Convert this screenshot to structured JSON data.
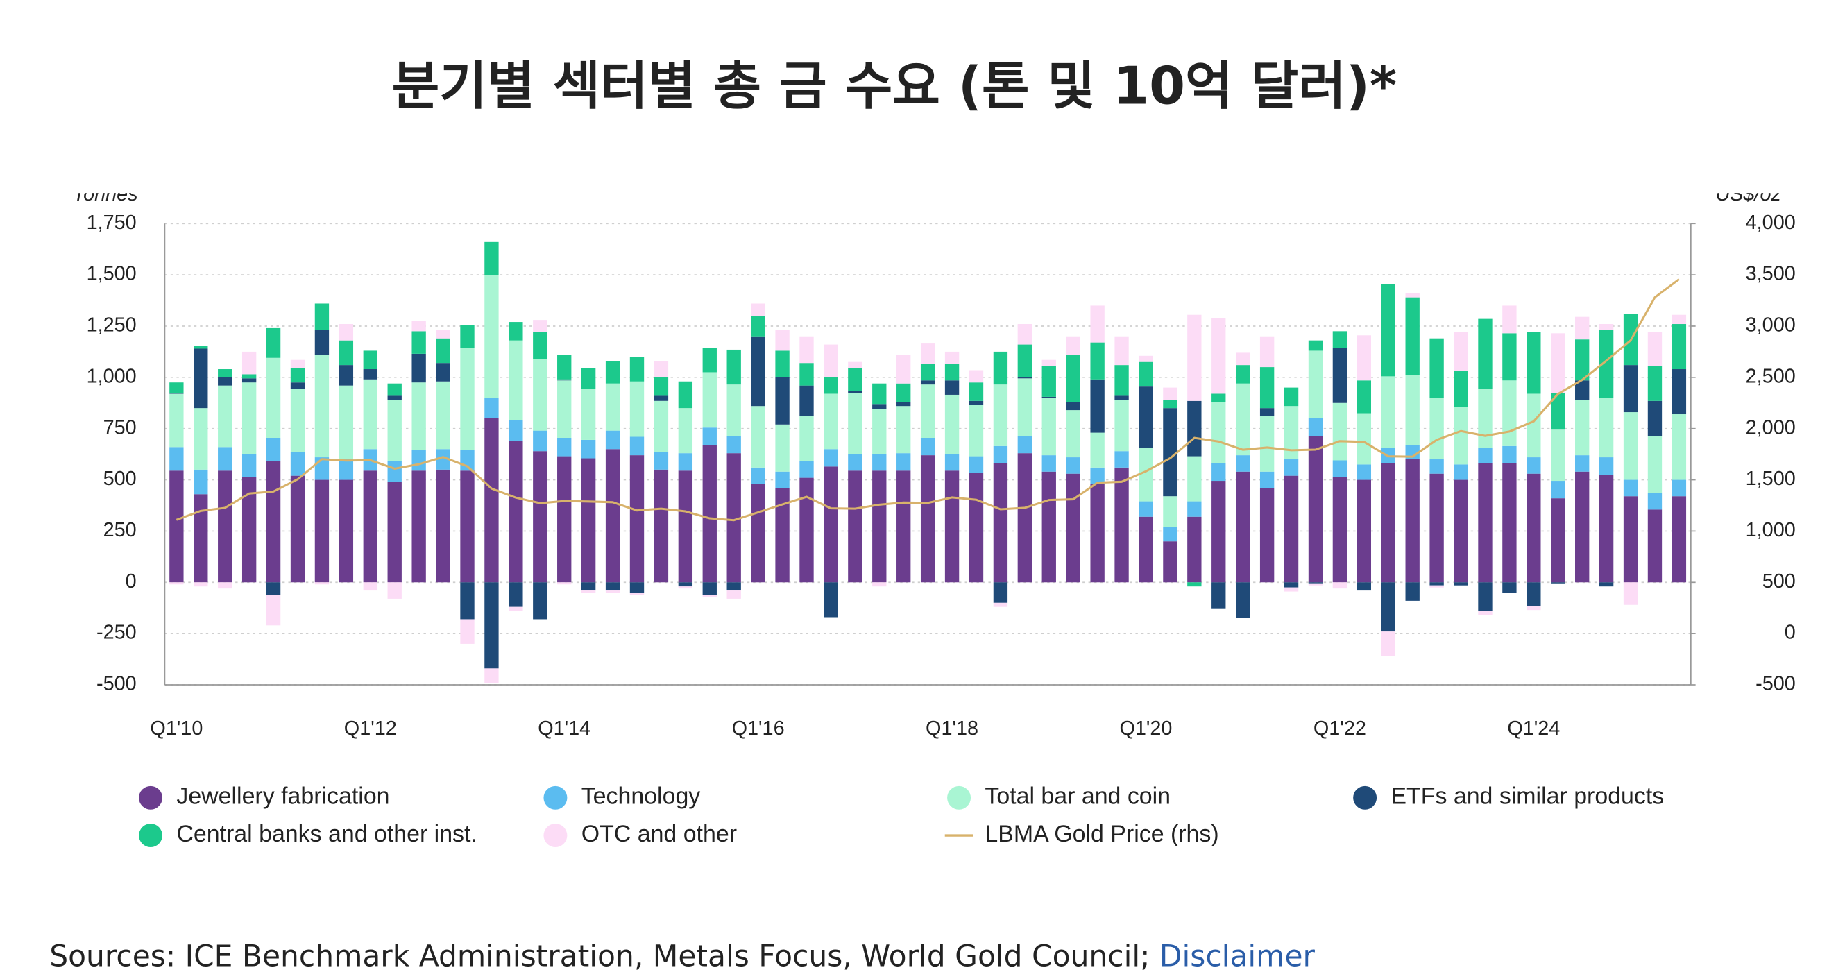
{
  "chart_data": {
    "type": "bar",
    "title": "분기별 섹터별 총 금 수요 (톤 및 10억 달러)*",
    "ylabel": "Tonnes",
    "y2label": "US$/oz",
    "stacked": true,
    "grid": true,
    "legend": "bottom",
    "categories": [
      "Q1'10",
      null,
      null,
      null,
      null,
      null,
      null,
      null,
      "Q1'12",
      null,
      null,
      null,
      null,
      null,
      null,
      null,
      "Q1'14",
      null,
      null,
      null,
      null,
      null,
      null,
      null,
      "Q1'16",
      null,
      null,
      null,
      null,
      null,
      null,
      null,
      "Q1'18",
      null,
      null,
      null,
      null,
      null,
      null,
      null,
      "Q1'20",
      null,
      null,
      null,
      null,
      null,
      null,
      null,
      "Q1'22",
      null,
      null,
      null,
      null,
      null,
      null,
      null,
      "Q1'24",
      null,
      null,
      null,
      null,
      null,
      null
    ],
    "ylim": [
      -500,
      1750
    ],
    "yticks": [
      -500,
      -250,
      0,
      250,
      500,
      750,
      {
        "value": 1000,
        "label": "1,000"
      },
      {
        "value": 1250,
        "label": "1,250"
      },
      {
        "value": 1500,
        "label": "1,500"
      },
      {
        "value": 1750,
        "label": "1,750"
      }
    ],
    "y2lim": [
      -500,
      4000
    ],
    "y2ticks": [
      -500,
      0,
      500,
      {
        "value": 1000,
        "label": "1,000"
      },
      {
        "value": 1500,
        "label": "1,500"
      },
      {
        "value": 2000,
        "label": "2,000"
      },
      {
        "value": 2500,
        "label": "2,500"
      },
      {
        "value": 3000,
        "label": "3,000"
      },
      {
        "value": 3500,
        "label": "3,500"
      },
      {
        "value": 4000,
        "label": "4,000"
      }
    ],
    "series": [
      {
        "name": "Jewellery fabrication",
        "color": "#6b3d8e",
        "values": [
          545,
          430,
          545,
          515,
          590,
          520,
          500,
          500,
          545,
          490,
          545,
          550,
          545,
          800,
          690,
          640,
          615,
          605,
          650,
          620,
          550,
          545,
          670,
          630,
          480,
          460,
          510,
          565,
          545,
          545,
          545,
          620,
          545,
          535,
          580,
          630,
          540,
          530,
          480,
          560,
          320,
          200,
          320,
          495,
          540,
          460,
          520,
          715,
          515,
          500,
          580,
          600,
          530,
          500,
          580,
          580,
          530,
          410,
          540,
          525,
          420,
          355,
          420
        ]
      },
      {
        "name": "Technology",
        "color": "#5bbcf0",
        "values": [
          115,
          120,
          115,
          110,
          115,
          115,
          110,
          100,
          105,
          100,
          100,
          100,
          100,
          100,
          100,
          100,
          90,
          90,
          90,
          90,
          85,
          85,
          85,
          85,
          80,
          80,
          80,
          85,
          80,
          80,
          85,
          85,
          80,
          80,
          85,
          85,
          80,
          80,
          80,
          80,
          75,
          70,
          75,
          85,
          80,
          80,
          80,
          85,
          80,
          75,
          75,
          70,
          70,
          75,
          75,
          85,
          80,
          85,
          80,
          85,
          80,
          80,
          80
        ]
      },
      {
        "name": "Total bar and coin",
        "color": "#a9f5d3",
        "values": [
          260,
          300,
          300,
          350,
          390,
          310,
          500,
          360,
          340,
          300,
          330,
          330,
          500,
          600,
          390,
          350,
          280,
          250,
          230,
          270,
          250,
          220,
          270,
          250,
          300,
          230,
          220,
          270,
          300,
          220,
          230,
          260,
          290,
          250,
          300,
          280,
          280,
          230,
          170,
          250,
          260,
          150,
          220,
          300,
          350,
          270,
          260,
          330,
          280,
          250,
          350,
          340,
          300,
          280,
          290,
          320,
          310,
          250,
          270,
          290,
          330,
          280,
          320
        ]
      },
      {
        "name": "ETFs and similar products",
        "color": "#1f4a78",
        "values": [
          5,
          290,
          40,
          20,
          -60,
          30,
          120,
          100,
          50,
          20,
          140,
          90,
          -180,
          -420,
          -120,
          -180,
          5,
          -40,
          -40,
          -50,
          25,
          -20,
          -60,
          -40,
          340,
          230,
          150,
          -170,
          10,
          25,
          20,
          20,
          70,
          20,
          -100,
          5,
          5,
          40,
          260,
          20,
          300,
          430,
          270,
          -130,
          -175,
          40,
          -25,
          -5,
          270,
          -40,
          -240,
          -90,
          -15,
          -15,
          -140,
          -50,
          -115,
          -5,
          95,
          -20,
          230,
          170,
          220
        ]
      },
      {
        "name": "Central banks and other inst.",
        "color": "#1cc98c",
        "values": [
          50,
          15,
          40,
          20,
          145,
          70,
          130,
          120,
          90,
          60,
          110,
          120,
          110,
          160,
          90,
          130,
          120,
          100,
          110,
          120,
          90,
          130,
          120,
          170,
          100,
          130,
          110,
          80,
          110,
          100,
          90,
          80,
          80,
          90,
          160,
          160,
          150,
          230,
          180,
          150,
          120,
          40,
          -20,
          40,
          90,
          200,
          90,
          50,
          80,
          160,
          450,
          380,
          290,
          175,
          340,
          230,
          300,
          180,
          200,
          330,
          250,
          170,
          220
        ]
      },
      {
        "name": "OTC and other",
        "color": "#fcdcf6",
        "values": [
          -10,
          -20,
          -30,
          110,
          -150,
          40,
          -10,
          80,
          -40,
          -80,
          50,
          40,
          -120,
          -70,
          -20,
          60,
          -10,
          -10,
          -10,
          -10,
          80,
          -10,
          -10,
          -40,
          60,
          100,
          130,
          160,
          30,
          -20,
          140,
          100,
          60,
          60,
          -20,
          100,
          30,
          90,
          180,
          140,
          30,
          60,
          420,
          370,
          60,
          150,
          -20,
          -10,
          -30,
          220,
          -120,
          20,
          -10,
          190,
          -20,
          135,
          -20,
          290,
          110,
          30,
          -110,
          165,
          45
        ]
      },
      {
        "name": "LBMA Gold Price (rhs)",
        "color": "#d8b26b",
        "type": "line",
        "axis": "y2",
        "values": [
          1109,
          1197,
          1227,
          1367,
          1386,
          1506,
          1702,
          1688,
          1691,
          1609,
          1652,
          1722,
          1632,
          1415,
          1326,
          1272,
          1293,
          1288,
          1282,
          1201,
          1218,
          1192,
          1124,
          1106,
          1183,
          1260,
          1335,
          1222,
          1219,
          1257,
          1278,
          1275,
          1329,
          1306,
          1213,
          1226,
          1304,
          1310,
          1472,
          1481,
          1583,
          1711,
          1909,
          1874,
          1794,
          1816,
          1789,
          1795,
          1877,
          1871,
          1729,
          1726,
          1890,
          1976,
          1929,
          1971,
          2070,
          2338,
          2474,
          2663,
          2860,
          3280,
          3457
        ]
      }
    ],
    "source": "Sources: ICE Benchmark Administration, Metals Focus, World Gold Council;",
    "source_link": "Disclaimer"
  }
}
